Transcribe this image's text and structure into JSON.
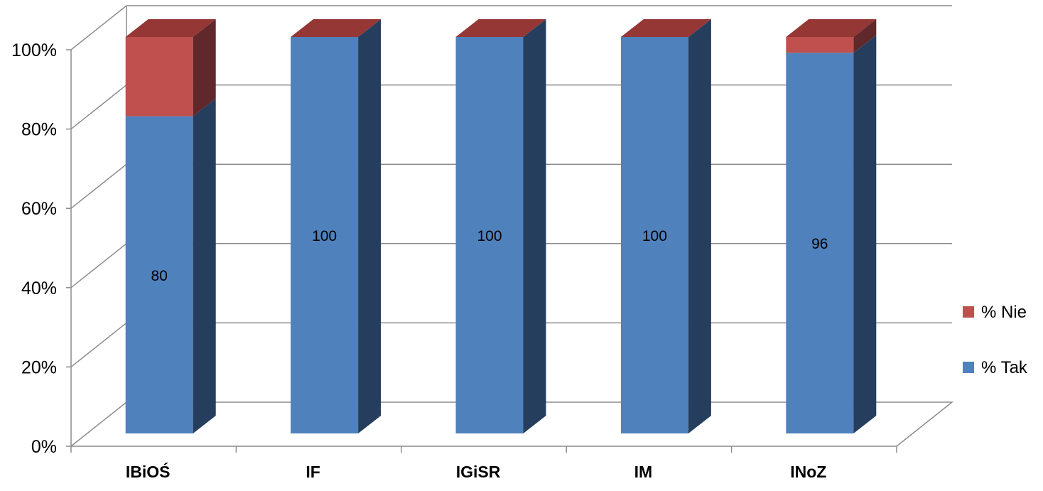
{
  "chart_data": {
    "type": "bar",
    "stacked": true,
    "percent_stacked": true,
    "three_d": true,
    "categories": [
      "IBiOŚ",
      "IF",
      "IGiSR",
      "IM",
      "INoZ"
    ],
    "series": [
      {
        "name": "% Tak",
        "values": [
          80,
          100,
          100,
          100,
          96
        ],
        "data_labels": [
          "80",
          "100",
          "100",
          "100",
          "96"
        ],
        "color": "#4F81BD",
        "side_color": "#263E5E"
      },
      {
        "name": "% Nie",
        "values": [
          20,
          0,
          0,
          0,
          4
        ],
        "color": "#C0504D",
        "side_color": "#60282A"
      }
    ],
    "yticks": [
      "0%",
      "20%",
      "40%",
      "60%",
      "80%",
      "100%"
    ],
    "ylim": [
      0,
      100
    ],
    "grid": true,
    "legend_position": "right",
    "legend_order": [
      "% Nie",
      "% Tak"
    ],
    "gridline_color": "#8C8C8C"
  }
}
